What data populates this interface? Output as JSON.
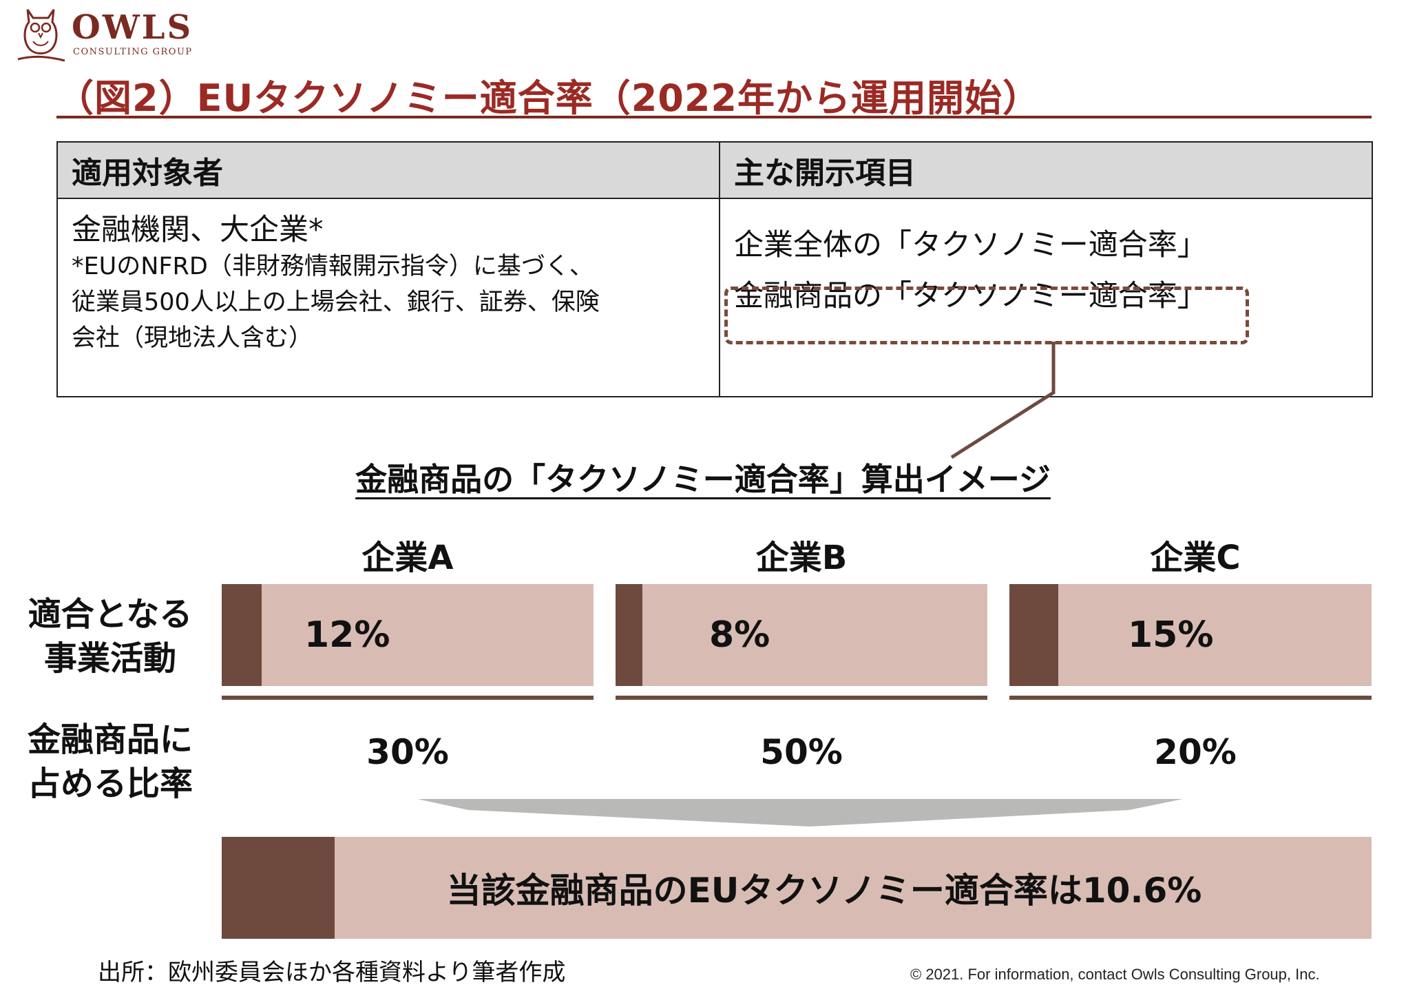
{
  "logo": {
    "name": "OWLS",
    "sub": "CONSULTING GROUP",
    "icon": "owl-logo-icon"
  },
  "title": "（図2）EUタクソノミー適合率（2022年から運用開始）",
  "table": {
    "headers": [
      "適用対象者",
      "主な開示項目"
    ],
    "left_main": "金融機関、大企業*",
    "left_note_lines": [
      "*EUのNFRD（非財務情報開示指令）に基づく、",
      "従業員500人以上の上場会社、銀行、証券、保険",
      "会社（現地法人含む）"
    ],
    "right_items": [
      "企業全体の「タクソノミー適合率」",
      "金融商品の「タクソノミー適合率」"
    ]
  },
  "section_title": "金融商品の「タクソノミー適合率」算出イメージ",
  "row_labels": {
    "activities": [
      "適合となる",
      "事業活動"
    ],
    "share": [
      "金融商品に",
      "占める比率"
    ]
  },
  "companies": [
    {
      "name": "企業A",
      "aligned_label": "12%",
      "aligned": 0.12,
      "share": "30%"
    },
    {
      "name": "企業B",
      "aligned_label": "8%",
      "aligned": 0.08,
      "share": "50%"
    },
    {
      "name": "企業C",
      "aligned_label": "15%",
      "aligned": 0.15,
      "share": "20%"
    }
  ],
  "result": {
    "text": "当該金融商品のEUタクソノミー適合率は10.6%",
    "value": 0.106
  },
  "source": "出所：欧州委員会ほか各種資料より筆者作成",
  "copyright": "© 2021. For information, contact Owls Consulting Group, Inc.",
  "colors": {
    "brand": "#9b2a24",
    "bar_dark": "#6e4a3e",
    "bar_light": "#d8bcb3",
    "header_gray": "#d9d9d9"
  }
}
